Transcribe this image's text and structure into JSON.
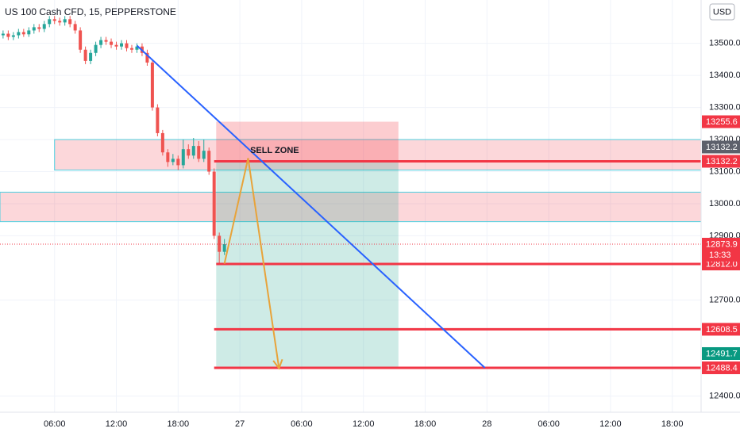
{
  "chart_data": {
    "type": "candlestick",
    "title": "US 100 Cash CFD, 15, PEPPERSTONE",
    "currency": "USD",
    "up_color": "#26a69a",
    "down_color": "#ef5350",
    "grid": true,
    "x": [
      1,
      1.5,
      2,
      2.5,
      3,
      3.5,
      4,
      4.5,
      5,
      5.5,
      6,
      6.5,
      7,
      7.5,
      8,
      8.5,
      9,
      9.5,
      10,
      10.5,
      11,
      11.5,
      12,
      12.5,
      13,
      13.5,
      14,
      14.5,
      15,
      15.5,
      16,
      16.5,
      17,
      17.5,
      18,
      18.5,
      19,
      19.5,
      20,
      20.5,
      21,
      21.5,
      22,
      22.5
    ],
    "open": [
      13525,
      13530,
      13520,
      13525,
      13535,
      13528,
      13540,
      13550,
      13545,
      13560,
      13575,
      13570,
      13565,
      13575,
      13560,
      13540,
      13480,
      13445,
      13470,
      13495,
      13510,
      13505,
      13495,
      13490,
      13500,
      13485,
      13480,
      13490,
      13470,
      13440,
      13300,
      13220,
      13160,
      13130,
      13140,
      13120,
      13170,
      13150,
      13180,
      13140,
      13165,
      13100,
      12900,
      12850
    ],
    "high": [
      13540,
      13540,
      13535,
      13545,
      13545,
      13550,
      13560,
      13560,
      13570,
      13585,
      13585,
      13580,
      13585,
      13585,
      13570,
      13550,
      13490,
      13480,
      13505,
      13520,
      13520,
      13515,
      13505,
      13510,
      13510,
      13495,
      13500,
      13500,
      13480,
      13450,
      13310,
      13230,
      13170,
      13155,
      13150,
      13200,
      13185,
      13205,
      13195,
      13200,
      13175,
      13110,
      12910,
      12890
    ],
    "low": [
      13515,
      13510,
      13510,
      13515,
      13520,
      13520,
      13530,
      13535,
      13535,
      13550,
      13560,
      13555,
      13555,
      13550,
      13530,
      13470,
      13435,
      13435,
      13460,
      13485,
      13495,
      13485,
      13480,
      13480,
      13475,
      13470,
      13470,
      13460,
      13430,
      13290,
      13210,
      13150,
      13115,
      13120,
      13105,
      13110,
      13140,
      13140,
      13130,
      13130,
      13090,
      12890,
      12815,
      12840
    ],
    "close": [
      13530,
      13520,
      13525,
      13535,
      13528,
      13540,
      13550,
      13545,
      13560,
      13575,
      13570,
      13565,
      13575,
      13560,
      13540,
      13480,
      13445,
      13470,
      13495,
      13510,
      13505,
      13495,
      13490,
      13500,
      13485,
      13480,
      13490,
      13470,
      13440,
      13300,
      13220,
      13160,
      13130,
      13140,
      13120,
      13170,
      13150,
      13180,
      13140,
      13165,
      13100,
      12900,
      12850,
      12873.9
    ],
    "xlim": [
      0.7,
      68.8
    ],
    "ylim": [
      12350,
      13635
    ],
    "xticks": [
      {
        "value": 6,
        "label": "06:00"
      },
      {
        "value": 12,
        "label": "12:00"
      },
      {
        "value": 18,
        "label": "18:00"
      },
      {
        "value": 24,
        "label": "27"
      },
      {
        "value": 30,
        "label": "06:00"
      },
      {
        "value": 36,
        "label": "12:00"
      },
      {
        "value": 42,
        "label": "18:00"
      },
      {
        "value": 48,
        "label": "28"
      },
      {
        "value": 54,
        "label": "06:00"
      },
      {
        "value": 60,
        "label": "12:00"
      },
      {
        "value": 66,
        "label": "18:00"
      }
    ],
    "yticks": [
      {
        "value": 12400,
        "label": "12400.0"
      },
      {
        "value": 12700,
        "label": "12700.0"
      },
      {
        "value": 12900,
        "label": "12900.0"
      },
      {
        "value": 13000,
        "label": "13000.0"
      },
      {
        "value": 13100,
        "label": "13100.0"
      },
      {
        "value": 13200,
        "label": "13200.0"
      },
      {
        "value": 13300,
        "label": "13300.0"
      },
      {
        "value": 13400,
        "label": "13400.0"
      },
      {
        "value": 13500,
        "label": "13500.0"
      }
    ],
    "zones": [
      {
        "x_start": 6,
        "top": 13200,
        "bottom": 13105
      },
      {
        "x_start": 0.7,
        "top": 13036,
        "bottom": 12944
      }
    ],
    "annotation": {
      "text": "SELL ZONE",
      "x": 25,
      "y": 13165
    },
    "position": {
      "x_start": 21.7,
      "x_end": 39.4,
      "stop": {
        "value": 13255.6,
        "label": "13255.6"
      },
      "entry": {
        "value": 13132.2,
        "label": "13132.2"
      },
      "target": {
        "value": 12491.7,
        "label": "12491.7"
      }
    },
    "hlines": [
      {
        "value": 13132.2,
        "label": "13132.2",
        "x_start": 21.5
      },
      {
        "value": 12812,
        "label": "12812.0",
        "x_start": 21.7
      },
      {
        "value": 12608.5,
        "label": "12608.5",
        "x_start": 21.5
      },
      {
        "value": 12488.4,
        "label": "12488.4",
        "x_start": 21.5
      }
    ],
    "trendline": {
      "x": [
        14,
        47.8
      ],
      "y": [
        13493,
        12488.4
      ],
      "color": "#2962ff"
    },
    "arrow": {
      "x": [
        22.5,
        24.8,
        27.8
      ],
      "y": [
        12813,
        13142,
        12487
      ],
      "color": "#e8a33a"
    },
    "last_price": {
      "value": 12873.9,
      "label": "12873.9",
      "countdown": "13:33"
    }
  }
}
